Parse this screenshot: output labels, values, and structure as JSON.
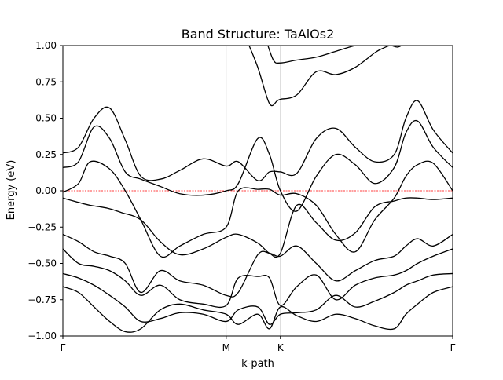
{
  "chart_data": {
    "type": "line",
    "title": "Band Structure: TaAlOs2",
    "xlabel": "k-path",
    "ylabel": "Energy (eV)",
    "xlim": [
      0,
      1
    ],
    "ylim": [
      -1.0,
      1.0
    ],
    "xticks": [
      {
        "label": "Γ",
        "x": 0.0
      },
      {
        "label": "M",
        "x": 0.419
      },
      {
        "label": "K",
        "x": 0.558
      },
      {
        "label": "Γ",
        "x": 1.0
      }
    ],
    "yticks": [
      "−1.00",
      "−0.75",
      "−0.50",
      "−0.25",
      "0.00",
      "0.25",
      "0.50",
      "0.75",
      "1.00"
    ],
    "ytick_values": [
      -1.0,
      -0.75,
      -0.5,
      -0.25,
      0.0,
      0.25,
      0.5,
      0.75,
      1.0
    ],
    "vlines": [
      0.419,
      0.558
    ],
    "fermi_level": 0.0,
    "grid": false,
    "line_color": "#000000",
    "vline_color": "#cccccc",
    "fermi_color": "#ff0000",
    "series": [
      {
        "x": [
          0,
          0.04,
          0.07,
          0.115,
          0.15,
          0.2,
          0.25,
          0.3,
          0.36,
          0.419,
          0.45,
          0.5,
          0.53,
          0.558,
          0.6,
          0.65,
          0.7,
          0.75,
          0.8,
          0.85,
          0.88,
          0.91,
          0.95,
          1.0
        ],
        "y": [
          -0.05,
          -0.08,
          -0.1,
          -0.12,
          -0.15,
          -0.2,
          -0.35,
          -0.44,
          -0.4,
          -0.32,
          -0.3,
          -0.36,
          -0.43,
          -0.43,
          -0.1,
          -0.22,
          -0.34,
          -0.29,
          -0.11,
          -0.07,
          -0.05,
          -0.05,
          -0.06,
          -0.05
        ]
      },
      {
        "x": [
          0,
          0.04,
          0.08,
          0.12,
          0.16,
          0.2,
          0.25,
          0.3,
          0.36,
          0.419,
          0.45,
          0.5,
          0.53,
          0.558,
          0.6,
          0.65,
          0.7,
          0.75,
          0.8,
          0.85,
          0.88,
          0.91,
          0.95,
          1.0
        ],
        "y": [
          0.16,
          0.2,
          0.44,
          0.36,
          0.13,
          0.08,
          0.03,
          -0.02,
          -0.03,
          0.0,
          0.05,
          0.36,
          0.25,
          0.0,
          -0.14,
          0.1,
          0.25,
          0.18,
          0.05,
          0.16,
          0.4,
          0.48,
          0.3,
          0.16
        ]
      },
      {
        "x": [
          0,
          0.04,
          0.08,
          0.12,
          0.16,
          0.2,
          0.25,
          0.3,
          0.36,
          0.419,
          0.45,
          0.5,
          0.53,
          0.558,
          0.6,
          0.65,
          0.7,
          0.75,
          0.8,
          0.85,
          0.88,
          0.91,
          0.95,
          1.0
        ],
        "y": [
          0.26,
          0.3,
          0.5,
          0.57,
          0.35,
          0.1,
          0.08,
          0.14,
          0.22,
          0.17,
          0.2,
          0.07,
          0.13,
          0.13,
          0.12,
          0.36,
          0.43,
          0.3,
          0.2,
          0.25,
          0.5,
          0.62,
          0.42,
          0.26
        ]
      },
      {
        "x": [
          0,
          0.04,
          0.07,
          0.12,
          0.16,
          0.2,
          0.25,
          0.3,
          0.36,
          0.419,
          0.45,
          0.5,
          0.53,
          0.558,
          0.6,
          0.65,
          0.7,
          0.75,
          0.8,
          0.85,
          0.88,
          0.91,
          0.95,
          1.0
        ],
        "y": [
          -0.01,
          0.05,
          0.2,
          0.15,
          0.0,
          -0.2,
          -0.45,
          -0.38,
          -0.3,
          -0.25,
          0.0,
          0.01,
          0.01,
          -0.03,
          -0.02,
          -0.1,
          -0.3,
          -0.42,
          -0.2,
          -0.05,
          0.1,
          0.18,
          0.19,
          0.0
        ]
      },
      {
        "x": [
          0,
          0.04,
          0.08,
          0.12,
          0.16,
          0.2,
          0.25,
          0.3,
          0.36,
          0.419,
          0.45,
          0.5,
          0.53,
          0.558,
          0.6,
          0.65,
          0.7,
          0.75,
          0.8,
          0.85,
          0.88,
          0.91,
          0.95,
          1.0
        ],
        "y": [
          -0.3,
          -0.35,
          -0.42,
          -0.45,
          -0.5,
          -0.7,
          -0.55,
          -0.62,
          -0.65,
          -0.72,
          -0.7,
          -0.44,
          -0.43,
          -0.45,
          -0.38,
          -0.5,
          -0.62,
          -0.55,
          -0.48,
          -0.45,
          -0.38,
          -0.33,
          -0.38,
          -0.3
        ]
      },
      {
        "x": [
          0,
          0.04,
          0.08,
          0.12,
          0.16,
          0.2,
          0.25,
          0.3,
          0.36,
          0.419,
          0.45,
          0.5,
          0.53,
          0.558,
          0.6,
          0.65,
          0.7,
          0.75,
          0.8,
          0.85,
          0.88,
          0.91,
          0.95,
          1.0
        ],
        "y": [
          -0.4,
          -0.5,
          -0.52,
          -0.55,
          -0.62,
          -0.72,
          -0.65,
          -0.75,
          -0.78,
          -0.79,
          -0.6,
          -0.59,
          -0.6,
          -0.79,
          -0.66,
          -0.58,
          -0.75,
          -0.65,
          -0.6,
          -0.58,
          -0.55,
          -0.5,
          -0.45,
          -0.4
        ]
      },
      {
        "x": [
          0,
          0.04,
          0.08,
          0.12,
          0.16,
          0.2,
          0.25,
          0.3,
          0.36,
          0.419,
          0.45,
          0.5,
          0.53,
          0.558,
          0.6,
          0.65,
          0.7,
          0.75,
          0.8,
          0.85,
          0.88,
          0.91,
          0.95,
          1.0
        ],
        "y": [
          -0.57,
          -0.6,
          -0.65,
          -0.72,
          -0.8,
          -0.9,
          -0.88,
          -0.84,
          -0.85,
          -0.9,
          -0.82,
          -0.8,
          -0.92,
          -0.85,
          -0.84,
          -0.82,
          -0.72,
          -0.8,
          -0.76,
          -0.7,
          -0.65,
          -0.62,
          -0.58,
          -0.57
        ]
      },
      {
        "x": [
          0,
          0.04,
          0.08,
          0.12,
          0.16,
          0.2,
          0.25,
          0.3,
          0.36,
          0.419,
          0.45,
          0.5,
          0.53,
          0.558,
          0.6,
          0.65,
          0.7,
          0.75,
          0.8,
          0.85,
          0.88,
          0.91,
          0.95,
          1.0
        ],
        "y": [
          -0.66,
          -0.7,
          -0.8,
          -0.9,
          -0.97,
          -0.95,
          -0.82,
          -0.78,
          -0.82,
          -0.85,
          -0.92,
          -0.85,
          -0.95,
          -0.8,
          -0.86,
          -0.9,
          -0.85,
          -0.88,
          -0.93,
          -0.95,
          -0.85,
          -0.78,
          -0.7,
          -0.66
        ]
      },
      {
        "x": [
          0.47,
          0.5,
          0.53,
          0.55,
          0.558,
          0.6,
          0.65,
          0.7,
          0.75,
          0.8,
          0.82,
          0.84,
          0.86,
          0.88
        ],
        "y": [
          1.05,
          0.85,
          0.6,
          0.62,
          0.63,
          0.66,
          0.82,
          0.8,
          0.85,
          0.95,
          0.98,
          1.0,
          0.99,
          1.02
        ]
      },
      {
        "x": [
          0.52,
          0.54,
          0.558,
          0.6,
          0.65,
          0.7,
          0.75,
          0.8,
          0.83,
          0.86
        ],
        "y": [
          1.05,
          0.9,
          0.88,
          0.9,
          0.92,
          0.96,
          1.0,
          1.02,
          1.02,
          1.05
        ]
      }
    ]
  }
}
